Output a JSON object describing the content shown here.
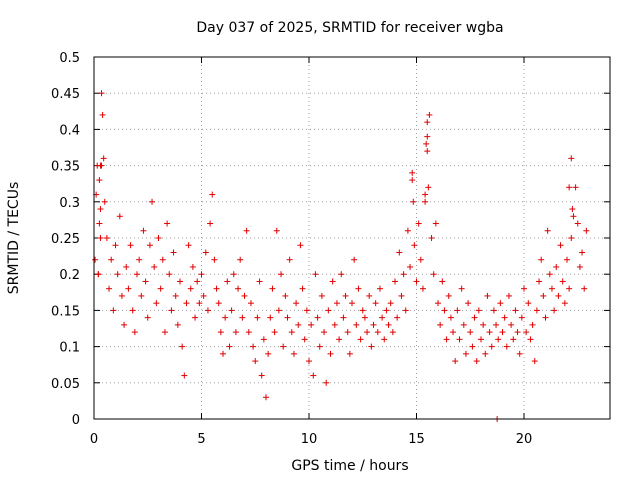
{
  "chart_data": {
    "type": "scatter",
    "title": "Day 037 of 2025, SRMTID for receiver wgba",
    "xlabel": "GPS time / hours",
    "ylabel": "SRMTID / TECUs",
    "xlim": [
      0,
      24
    ],
    "ylim": [
      0,
      0.5
    ],
    "xticks": [
      0,
      5,
      10,
      15,
      20
    ],
    "xtick_labels": [
      "0",
      "5",
      "10",
      "15",
      "20"
    ],
    "yticks": [
      0,
      0.05,
      0.1,
      0.15,
      0.2,
      0.25,
      0.3,
      0.35,
      0.4,
      0.45,
      0.5
    ],
    "ytick_labels": [
      "0",
      "0.05",
      "0.1",
      "0.15",
      "0.2",
      "0.25",
      "0.3",
      "0.35",
      "0.4",
      "0.45",
      "0.5"
    ],
    "grid": true,
    "marker": "+",
    "color": "#e00000",
    "series": [
      {
        "name": "SRMTID",
        "x": [
          0.05,
          0.1,
          0.15,
          0.2,
          0.25,
          0.3,
          0.35,
          0.4,
          0.45,
          0.5,
          0.6,
          0.7,
          0.8,
          0.9,
          1.0,
          1.1,
          1.2,
          1.3,
          1.4,
          1.5,
          1.6,
          1.7,
          1.8,
          1.9,
          2.0,
          2.1,
          2.2,
          2.3,
          2.4,
          2.5,
          2.6,
          2.7,
          2.8,
          2.9,
          3.0,
          3.1,
          3.2,
          3.3,
          3.4,
          3.5,
          3.6,
          3.7,
          3.8,
          3.9,
          4.0,
          4.1,
          4.2,
          4.3,
          4.4,
          4.5,
          4.6,
          4.7,
          4.8,
          4.9,
          5.0,
          5.1,
          5.2,
          5.3,
          5.4,
          5.5,
          5.6,
          5.7,
          5.8,
          5.9,
          6.0,
          6.1,
          6.2,
          6.3,
          6.4,
          6.5,
          6.6,
          6.7,
          6.8,
          6.9,
          7.0,
          7.1,
          7.2,
          7.3,
          7.4,
          7.5,
          7.6,
          7.7,
          7.8,
          7.9,
          8.0,
          8.1,
          8.2,
          8.3,
          8.4,
          8.5,
          8.6,
          8.7,
          8.8,
          8.9,
          9.0,
          9.1,
          9.2,
          9.3,
          9.4,
          9.5,
          9.6,
          9.7,
          9.8,
          9.9,
          10.0,
          10.1,
          10.2,
          10.3,
          10.4,
          10.5,
          10.6,
          10.7,
          10.8,
          10.9,
          11.0,
          11.1,
          11.2,
          11.3,
          11.4,
          11.5,
          11.6,
          11.7,
          11.8,
          11.9,
          12.0,
          12.1,
          12.2,
          12.3,
          12.4,
          12.5,
          12.6,
          12.7,
          12.8,
          12.9,
          13.0,
          13.1,
          13.2,
          13.3,
          13.4,
          13.5,
          13.6,
          13.7,
          13.8,
          13.9,
          14.0,
          14.1,
          14.2,
          14.3,
          14.4,
          14.5,
          14.6,
          14.7,
          14.8,
          14.9,
          15.0,
          15.1,
          15.2,
          15.3,
          15.4,
          15.5,
          15.6,
          15.7,
          15.8,
          15.9,
          16.0,
          16.1,
          16.2,
          16.3,
          16.4,
          16.5,
          16.6,
          16.7,
          16.8,
          16.9,
          17.0,
          17.1,
          17.2,
          17.3,
          17.4,
          17.5,
          17.6,
          17.7,
          17.8,
          17.9,
          18.0,
          18.1,
          18.2,
          18.3,
          18.4,
          18.5,
          18.6,
          18.7,
          18.8,
          18.9,
          19.0,
          19.1,
          19.2,
          19.3,
          19.4,
          19.5,
          19.6,
          19.7,
          19.8,
          19.9,
          20.0,
          20.1,
          20.2,
          20.3,
          20.4,
          20.5,
          20.6,
          20.7,
          20.8,
          20.9,
          21.0,
          21.1,
          21.2,
          21.3,
          21.4,
          21.5,
          21.6,
          21.7,
          21.8,
          21.9,
          22.0,
          22.1,
          22.2,
          22.3,
          22.4,
          22.5,
          22.6,
          22.7,
          22.8,
          22.9,
          0.2,
          0.25,
          0.3,
          0.3,
          0.35,
          15.4,
          15.45,
          15.5,
          15.5,
          15.55,
          14.8,
          14.85,
          22.1,
          22.2,
          22.25,
          18.75
        ],
        "y": [
          0.22,
          0.31,
          0.35,
          0.2,
          0.27,
          0.35,
          0.45,
          0.42,
          0.36,
          0.3,
          0.25,
          0.18,
          0.22,
          0.15,
          0.24,
          0.2,
          0.28,
          0.17,
          0.13,
          0.21,
          0.18,
          0.24,
          0.15,
          0.12,
          0.2,
          0.22,
          0.17,
          0.26,
          0.19,
          0.14,
          0.24,
          0.3,
          0.21,
          0.16,
          0.25,
          0.18,
          0.22,
          0.12,
          0.27,
          0.2,
          0.15,
          0.23,
          0.17,
          0.13,
          0.19,
          0.1,
          0.06,
          0.16,
          0.24,
          0.18,
          0.21,
          0.14,
          0.19,
          0.16,
          0.2,
          0.17,
          0.23,
          0.15,
          0.27,
          0.31,
          0.22,
          0.18,
          0.16,
          0.12,
          0.09,
          0.14,
          0.19,
          0.1,
          0.15,
          0.2,
          0.12,
          0.18,
          0.22,
          0.14,
          0.17,
          0.26,
          0.12,
          0.16,
          0.1,
          0.08,
          0.14,
          0.19,
          0.06,
          0.11,
          0.03,
          0.09,
          0.14,
          0.18,
          0.12,
          0.26,
          0.15,
          0.2,
          0.1,
          0.17,
          0.14,
          0.22,
          0.12,
          0.09,
          0.16,
          0.13,
          0.24,
          0.18,
          0.11,
          0.15,
          0.08,
          0.13,
          0.06,
          0.2,
          0.14,
          0.1,
          0.17,
          0.12,
          0.05,
          0.15,
          0.09,
          0.19,
          0.13,
          0.16,
          0.11,
          0.2,
          0.14,
          0.17,
          0.12,
          0.09,
          0.16,
          0.22,
          0.13,
          0.18,
          0.11,
          0.15,
          0.14,
          0.12,
          0.17,
          0.1,
          0.13,
          0.16,
          0.12,
          0.18,
          0.14,
          0.11,
          0.15,
          0.13,
          0.16,
          0.12,
          0.19,
          0.14,
          0.23,
          0.17,
          0.2,
          0.15,
          0.26,
          0.21,
          0.33,
          0.24,
          0.19,
          0.27,
          0.22,
          0.18,
          0.3,
          0.39,
          0.42,
          0.25,
          0.2,
          0.27,
          0.16,
          0.13,
          0.19,
          0.15,
          0.11,
          0.17,
          0.14,
          0.12,
          0.08,
          0.15,
          0.11,
          0.18,
          0.13,
          0.09,
          0.16,
          0.12,
          0.1,
          0.14,
          0.08,
          0.15,
          0.11,
          0.13,
          0.09,
          0.17,
          0.12,
          0.1,
          0.15,
          0.13,
          0.11,
          0.16,
          0.12,
          0.14,
          0.1,
          0.17,
          0.13,
          0.11,
          0.15,
          0.12,
          0.09,
          0.14,
          0.18,
          0.12,
          0.16,
          0.11,
          0.13,
          0.08,
          0.15,
          0.19,
          0.22,
          0.17,
          0.14,
          0.26,
          0.2,
          0.18,
          0.15,
          0.21,
          0.17,
          0.24,
          0.19,
          0.16,
          0.22,
          0.18,
          0.25,
          0.28,
          0.32,
          0.27,
          0.21,
          0.23,
          0.18,
          0.26,
          0.2,
          0.33,
          0.29,
          0.25,
          0.35,
          0.31,
          0.38,
          0.41,
          0.37,
          0.32,
          0.34,
          0.3,
          0.32,
          0.36,
          0.29,
          0.0
        ]
      }
    ]
  }
}
